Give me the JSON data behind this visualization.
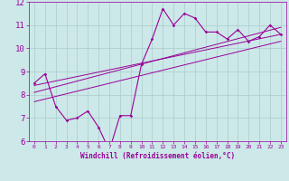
{
  "xlabel": "Windchill (Refroidissement éolien,°C)",
  "xlim": [
    -0.5,
    23.5
  ],
  "ylim": [
    6,
    12
  ],
  "xticks": [
    0,
    1,
    2,
    3,
    4,
    5,
    6,
    7,
    8,
    9,
    10,
    11,
    12,
    13,
    14,
    15,
    16,
    17,
    18,
    19,
    20,
    21,
    22,
    23
  ],
  "yticks": [
    6,
    7,
    8,
    9,
    10,
    11,
    12
  ],
  "bg_color": "#cce8e8",
  "line_color": "#990099",
  "grid_color": "#aacccc",
  "line1_x": [
    0,
    1,
    2,
    3,
    4,
    5,
    6,
    7,
    8,
    9,
    10,
    11,
    12,
    13,
    14,
    15,
    16,
    17,
    18,
    19,
    20,
    21,
    22,
    23
  ],
  "line1_y": [
    8.5,
    8.9,
    7.5,
    6.9,
    7.0,
    7.3,
    6.6,
    5.6,
    7.1,
    7.1,
    9.3,
    10.4,
    11.7,
    11.0,
    11.5,
    11.3,
    10.7,
    10.7,
    10.4,
    10.8,
    10.3,
    10.5,
    11.0,
    10.6
  ],
  "line2_x": [
    0,
    23
  ],
  "line2_y": [
    8.1,
    10.9
  ],
  "line3_x": [
    0,
    23
  ],
  "line3_y": [
    8.4,
    10.6
  ],
  "line4_x": [
    0,
    23
  ],
  "line4_y": [
    7.7,
    10.3
  ]
}
